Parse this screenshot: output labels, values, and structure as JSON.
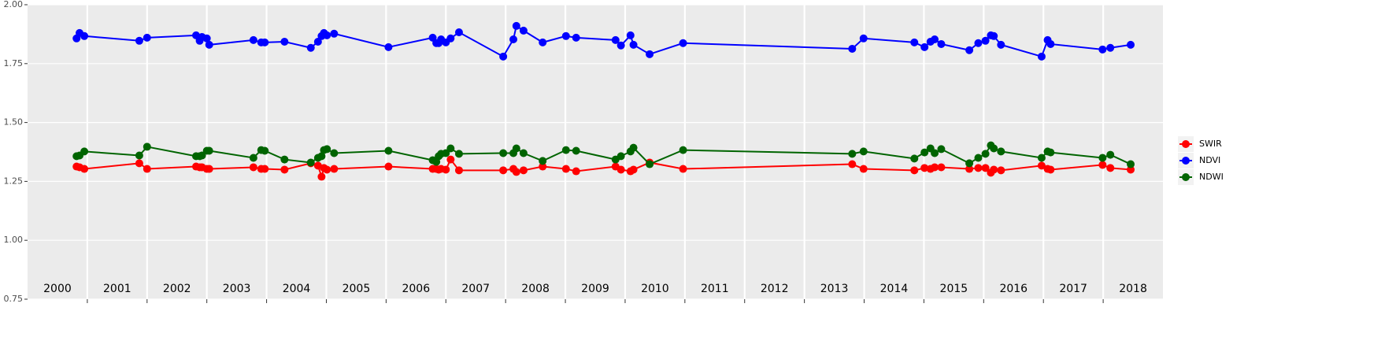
{
  "chart_data": {
    "type": "line",
    "x": [
      2000.82,
      2000.87,
      2000.95,
      2001.87,
      2002.0,
      2002.82,
      2002.88,
      2002.92,
      2003.0,
      2003.04,
      2003.78,
      2003.91,
      2003.97,
      2004.3,
      2004.74,
      2004.86,
      2004.92,
      2004.96,
      2005.01,
      2005.13,
      2006.04,
      2006.78,
      2006.84,
      2006.88,
      2006.92,
      2007.0,
      2007.08,
      2007.22,
      2007.96,
      2008.13,
      2008.18,
      2008.3,
      2008.62,
      2009.01,
      2009.18,
      2009.84,
      2009.93,
      2010.09,
      2010.14,
      2010.41,
      2010.97,
      2013.8,
      2013.99,
      2014.84,
      2015.01,
      2015.11,
      2015.18,
      2015.29,
      2015.76,
      2015.91,
      2016.03,
      2016.12,
      2016.17,
      2016.29,
      2016.97,
      2017.07,
      2017.12,
      2017.99,
      2018.12,
      2018.46
    ],
    "series": [
      {
        "name": "SWIR",
        "color": "#ff0000",
        "values": [
          1.313,
          1.31,
          1.303,
          1.327,
          1.303,
          1.313,
          1.31,
          1.31,
          1.303,
          1.303,
          1.31,
          1.303,
          1.303,
          1.3,
          1.327,
          1.317,
          1.27,
          1.307,
          1.3,
          1.303,
          1.313,
          1.303,
          1.303,
          1.3,
          1.303,
          1.3,
          1.343,
          1.297,
          1.297,
          1.303,
          1.29,
          1.297,
          1.313,
          1.303,
          1.293,
          1.313,
          1.3,
          1.293,
          1.3,
          1.33,
          1.303,
          1.323,
          1.303,
          1.297,
          1.307,
          1.303,
          1.31,
          1.31,
          1.303,
          1.307,
          1.307,
          1.287,
          1.3,
          1.297,
          1.317,
          1.303,
          1.3,
          1.32,
          1.307,
          1.3
        ]
      },
      {
        "name": "NDVI",
        "color": "#0000ff",
        "values": [
          1.857,
          1.88,
          1.867,
          1.847,
          1.86,
          1.87,
          1.847,
          1.863,
          1.857,
          1.83,
          1.85,
          1.84,
          1.84,
          1.843,
          1.817,
          1.843,
          1.867,
          1.88,
          1.87,
          1.877,
          1.82,
          1.86,
          1.837,
          1.837,
          1.853,
          1.84,
          1.857,
          1.883,
          1.78,
          1.853,
          1.91,
          1.89,
          1.84,
          1.867,
          1.86,
          1.85,
          1.827,
          1.87,
          1.83,
          1.79,
          1.837,
          1.813,
          1.857,
          1.84,
          1.82,
          1.843,
          1.853,
          1.833,
          1.807,
          1.837,
          1.847,
          1.87,
          1.867,
          1.83,
          1.78,
          1.85,
          1.833,
          1.81,
          1.817,
          1.83
        ]
      },
      {
        "name": "NDWI",
        "color": "#006400",
        "values": [
          1.357,
          1.36,
          1.377,
          1.36,
          1.397,
          1.357,
          1.357,
          1.36,
          1.38,
          1.38,
          1.35,
          1.383,
          1.38,
          1.343,
          1.33,
          1.35,
          1.357,
          1.383,
          1.387,
          1.37,
          1.38,
          1.34,
          1.333,
          1.357,
          1.367,
          1.37,
          1.39,
          1.367,
          1.37,
          1.37,
          1.39,
          1.37,
          1.337,
          1.383,
          1.38,
          1.343,
          1.357,
          1.377,
          1.393,
          1.323,
          1.383,
          1.367,
          1.377,
          1.347,
          1.373,
          1.39,
          1.37,
          1.387,
          1.327,
          1.35,
          1.367,
          1.403,
          1.39,
          1.377,
          1.35,
          1.377,
          1.373,
          1.35,
          1.363,
          1.323
        ]
      }
    ],
    "xlim": [
      2000,
      2019
    ],
    "xticks": [
      2001,
      2002,
      2003,
      2004,
      2005,
      2006,
      2007,
      2008,
      2009,
      2010,
      2011,
      2012,
      2013,
      2014,
      2015,
      2016,
      2017,
      2018
    ],
    "year_labels": [
      2000,
      2001,
      2002,
      2003,
      2004,
      2005,
      2006,
      2007,
      2008,
      2009,
      2010,
      2011,
      2012,
      2013,
      2014,
      2015,
      2016,
      2017,
      2018
    ],
    "ylim": [
      0.75,
      2.0
    ],
    "yticks": [
      {
        "value": 0.75,
        "label": "0.75"
      },
      {
        "value": 1.0,
        "label": "1.00"
      },
      {
        "value": 1.25,
        "label": "1.25"
      },
      {
        "value": 1.5,
        "label": "1.50"
      },
      {
        "value": 1.75,
        "label": "1.75"
      },
      {
        "value": 2.0,
        "label": "2.00"
      }
    ],
    "grid": true,
    "legend": "right"
  }
}
